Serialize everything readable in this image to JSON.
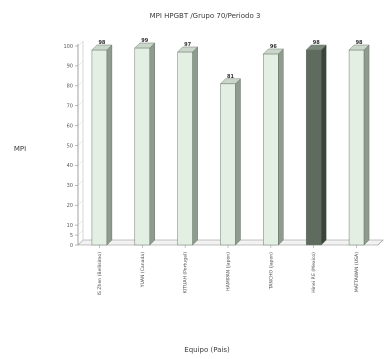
{
  "chart_data": {
    "type": "bar",
    "title": "MPI HPGBT /Grupo 70/Periodo 3",
    "xlabel": "Equipo (Pais)",
    "ylabel": "MPI",
    "ylim": [
      0,
      100
    ],
    "yticks": [
      0,
      5,
      10,
      20,
      30,
      40,
      50,
      60,
      70,
      80,
      90,
      100
    ],
    "grid": false,
    "legend": "none",
    "categories": [
      "IS Zhen (Bellisimo)",
      "YUAN (Canada)",
      "KITUAH (Portugal)",
      "HAMIPAN (Japon)",
      "TANCHO (Japon)",
      "Hinei P.E (Mexico)",
      "MATTAWAN (USA)"
    ],
    "values": [
      98,
      99,
      97,
      81,
      96,
      98,
      98
    ],
    "data_labels": [
      "98",
      "99",
      "97",
      "81",
      "96",
      "98",
      "98"
    ],
    "highlight_index": 5,
    "colors": {
      "bar": "#e3efe3",
      "bar_side": "#8e9c8e",
      "bar_top": "#c9d6c9",
      "highlight": "#5e6b5e",
      "highlight_side": "#3a443a",
      "highlight_top": "#7c887c",
      "axis": "#8a8a8a",
      "text": "#3c3c3c"
    }
  }
}
